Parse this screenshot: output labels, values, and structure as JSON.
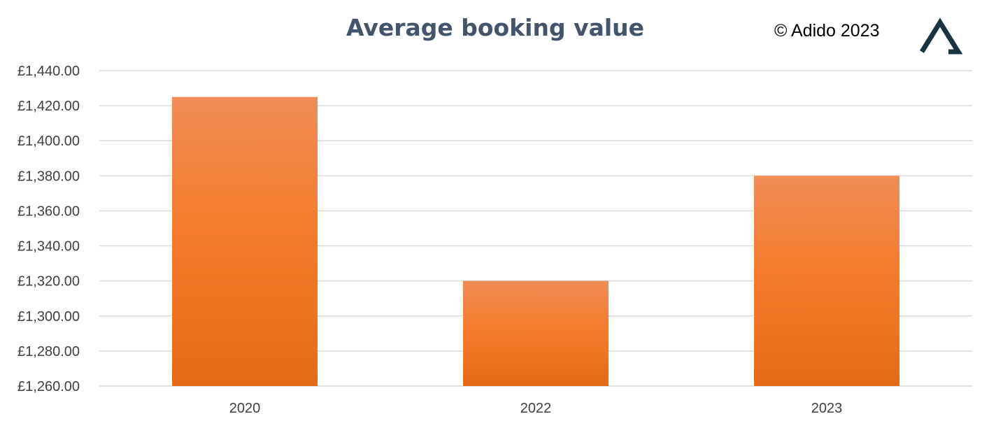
{
  "chart_data": {
    "type": "bar",
    "title": "Average booking value",
    "categories": [
      "2020",
      "2022",
      "2023"
    ],
    "values": [
      1425,
      1320,
      1380
    ],
    "ylim": [
      1260,
      1440
    ],
    "yticks": [
      "£1,440.00",
      "£1,420.00",
      "£1,400.00",
      "£1,380.00",
      "£1,360.00",
      "£1,340.00",
      "£1,320.00",
      "£1,300.00",
      "£1,280.00",
      "£1,260.00"
    ],
    "ytick_values": [
      1440,
      1420,
      1400,
      1380,
      1360,
      1340,
      1320,
      1300,
      1280,
      1260
    ],
    "xlabel": "",
    "ylabel": "",
    "grid": true,
    "legend": "none",
    "bar_color": "#f07e2a"
  },
  "copyright": "© Adido 2023",
  "logo": {
    "icon": "adido-triangle-logo",
    "color": "#1a3340"
  }
}
